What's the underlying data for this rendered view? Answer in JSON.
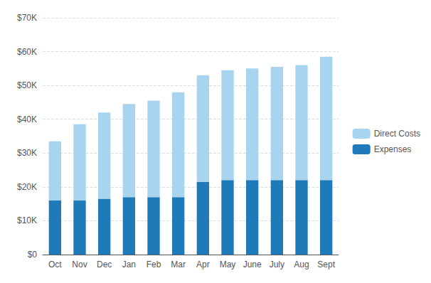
{
  "chart_data": {
    "type": "bar",
    "stacked": true,
    "categories": [
      "Oct",
      "Nov",
      "Dec",
      "Jan",
      "Feb",
      "Mar",
      "Apr",
      "May",
      "June",
      "July",
      "Aug",
      "Sept"
    ],
    "series": [
      {
        "name": "Expenses",
        "color": "#1e7ab8",
        "values": [
          16000,
          16000,
          16500,
          17000,
          17000,
          17000,
          21500,
          22000,
          22000,
          22000,
          22000,
          22000
        ]
      },
      {
        "name": "Direct Costs",
        "color": "#a8d4f0",
        "values": [
          17500,
          22500,
          25500,
          27500,
          28500,
          31000,
          31500,
          32500,
          33000,
          33500,
          34000,
          36500
        ]
      }
    ],
    "ylim": [
      0,
      70000
    ],
    "yticks": [
      {
        "value": 0,
        "label": "$0"
      },
      {
        "value": 10000,
        "label": "$10K"
      },
      {
        "value": 20000,
        "label": "$20K"
      },
      {
        "value": 30000,
        "label": "$30K"
      },
      {
        "value": 40000,
        "label": "$40K"
      },
      {
        "value": 50000,
        "label": "$50K"
      },
      {
        "value": 60000,
        "label": "$60K"
      },
      {
        "value": 70000,
        "label": "$70K"
      }
    ],
    "grid": true,
    "legend": "right"
  }
}
